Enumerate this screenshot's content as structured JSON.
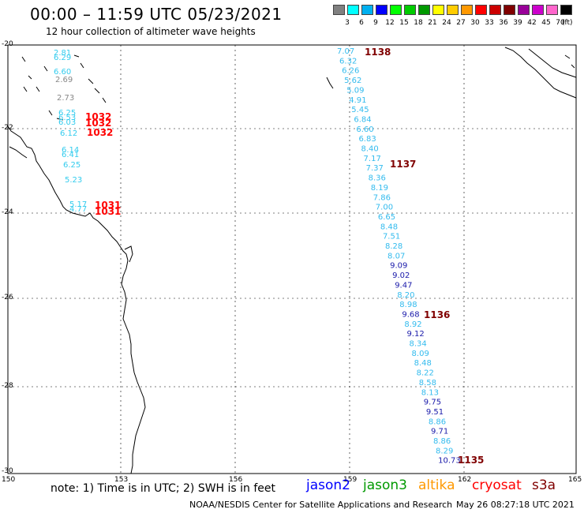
{
  "header": {
    "title": "00:00 – 11:59 UTC 05/23/2021",
    "subtitle": "12 hour collection of altimeter wave heights"
  },
  "color_scale": {
    "unit_label": "(ft)",
    "bins": [
      {
        "label": "3",
        "color": "#808080"
      },
      {
        "label": "6",
        "color": "#00ffff"
      },
      {
        "label": "9",
        "color": "#00b0f0"
      },
      {
        "label": "12",
        "color": "#0000ff"
      },
      {
        "label": "15",
        "color": "#00ff00"
      },
      {
        "label": "18",
        "color": "#00cc00"
      },
      {
        "label": "21",
        "color": "#009900"
      },
      {
        "label": "24",
        "color": "#ffff00"
      },
      {
        "label": "27",
        "color": "#ffcc00"
      },
      {
        "label": "30",
        "color": "#ff9900"
      },
      {
        "label": "33",
        "color": "#ff0000"
      },
      {
        "label": "36",
        "color": "#cc0000"
      },
      {
        "label": "39",
        "color": "#800000"
      },
      {
        "label": "42",
        "color": "#990099"
      },
      {
        "label": "45",
        "color": "#cc00cc"
      },
      {
        "label": "70",
        "color": "#ff66cc"
      },
      {
        "label": "",
        "color": "#000000"
      }
    ]
  },
  "axes": {
    "lat_labels": [
      "-20",
      "-22",
      "-24",
      "-26",
      "-28",
      "-30"
    ],
    "lon_labels": [
      "150",
      "153",
      "156",
      "159",
      "162",
      "165"
    ]
  },
  "tracks": {
    "west": [
      {
        "text": "2.81",
        "color": "#33ccee"
      },
      {
        "text": "6.29",
        "color": "#33ccee"
      },
      {
        "text": "6.60",
        "color": "#33ccee"
      },
      {
        "text": "2.69",
        "color": "#888888"
      },
      {
        "text": "2.73",
        "color": "#888888"
      },
      {
        "text": "6.25",
        "color": "#33ccee"
      },
      {
        "text": "6.53",
        "color": "#33ccee"
      },
      {
        "text": "6.03",
        "color": "#33ccee"
      },
      {
        "text": "6.12",
        "color": "#33ccee"
      },
      {
        "text": "6.14",
        "color": "#33ccee"
      },
      {
        "text": "6.41",
        "color": "#33ccee"
      },
      {
        "text": "6.25",
        "color": "#33ccee"
      },
      {
        "text": "5.23",
        "color": "#33ccee"
      },
      {
        "text": "5.17",
        "color": "#33ccee"
      },
      {
        "text": "4.77",
        "color": "#33ccee"
      }
    ],
    "west_times": [
      {
        "text": "1032",
        "color": "#ff0000"
      },
      {
        "text": "1032",
        "color": "#ff0000"
      },
      {
        "text": "1032",
        "color": "#ff0000"
      },
      {
        "text": "1031",
        "color": "#ff0000"
      },
      {
        "text": "1031",
        "color": "#ff0000"
      }
    ],
    "east": [
      {
        "text": "7.07",
        "color": "#33bbee"
      },
      {
        "text": "6.32",
        "color": "#33bbee"
      },
      {
        "text": "6.26",
        "color": "#33bbee"
      },
      {
        "text": "5.62",
        "color": "#33bbee"
      },
      {
        "text": "5.09",
        "color": "#33bbee"
      },
      {
        "text": "4.91",
        "color": "#33bbee"
      },
      {
        "text": "5.45",
        "color": "#33bbee"
      },
      {
        "text": "6.84",
        "color": "#33bbee"
      },
      {
        "text": "6.60",
        "color": "#33bbee"
      },
      {
        "text": "6.83",
        "color": "#33bbee"
      },
      {
        "text": "8.40",
        "color": "#33bbee"
      },
      {
        "text": "7.17",
        "color": "#33bbee"
      },
      {
        "text": "7.37",
        "color": "#33bbee"
      },
      {
        "text": "8.36",
        "color": "#33bbee"
      },
      {
        "text": "8.19",
        "color": "#33bbee"
      },
      {
        "text": "7.86",
        "color": "#33bbee"
      },
      {
        "text": "7.00",
        "color": "#33bbee"
      },
      {
        "text": "6.65",
        "color": "#33bbee"
      },
      {
        "text": "8.48",
        "color": "#33bbee"
      },
      {
        "text": "7.51",
        "color": "#33bbee"
      },
      {
        "text": "8.28",
        "color": "#33bbee"
      },
      {
        "text": "8.07",
        "color": "#33bbee"
      },
      {
        "text": "9.09",
        "color": "#1a1aaa"
      },
      {
        "text": "9.02",
        "color": "#1a1aaa"
      },
      {
        "text": "9.47",
        "color": "#1a1aaa"
      },
      {
        "text": "8.20",
        "color": "#33bbee"
      },
      {
        "text": "8.98",
        "color": "#33bbee"
      },
      {
        "text": "9.68",
        "color": "#1a1aaa"
      },
      {
        "text": "8.92",
        "color": "#33bbee"
      },
      {
        "text": "9.12",
        "color": "#1a1aaa"
      },
      {
        "text": "8.34",
        "color": "#33bbee"
      },
      {
        "text": "8.09",
        "color": "#33bbee"
      },
      {
        "text": "8.48",
        "color": "#33bbee"
      },
      {
        "text": "8.22",
        "color": "#33bbee"
      },
      {
        "text": "8.58",
        "color": "#33bbee"
      },
      {
        "text": "8.13",
        "color": "#33bbee"
      },
      {
        "text": "9.75",
        "color": "#1a1aaa"
      },
      {
        "text": "9.51",
        "color": "#1a1aaa"
      },
      {
        "text": "8.86",
        "color": "#33bbee"
      },
      {
        "text": "9.71",
        "color": "#1a1aaa"
      },
      {
        "text": "8.86",
        "color": "#33bbee"
      },
      {
        "text": "8.29",
        "color": "#33bbee"
      },
      {
        "text": "10.73",
        "color": "#1a1aaa"
      }
    ],
    "east_times": [
      {
        "text": "1138",
        "color": "#800000"
      },
      {
        "text": "1137",
        "color": "#800000"
      },
      {
        "text": "1136",
        "color": "#800000"
      },
      {
        "text": "1135",
        "color": "#800000"
      }
    ]
  },
  "footer": {
    "note": "note: 1) Time is in UTC; 2) SWH is in feet",
    "missions": [
      {
        "name": "jason2",
        "color": "#0000ff"
      },
      {
        "name": "jason3",
        "color": "#009900"
      },
      {
        "name": "altika",
        "color": "#ff9900"
      },
      {
        "name": "cryosat",
        "color": "#ff0000"
      },
      {
        "name": "s3a",
        "color": "#800000"
      }
    ],
    "credit": "NOAA/NESDIS Center for Satellite Applications and Research",
    "timestamp": "May 26 08:27:18 UTC 2021"
  }
}
